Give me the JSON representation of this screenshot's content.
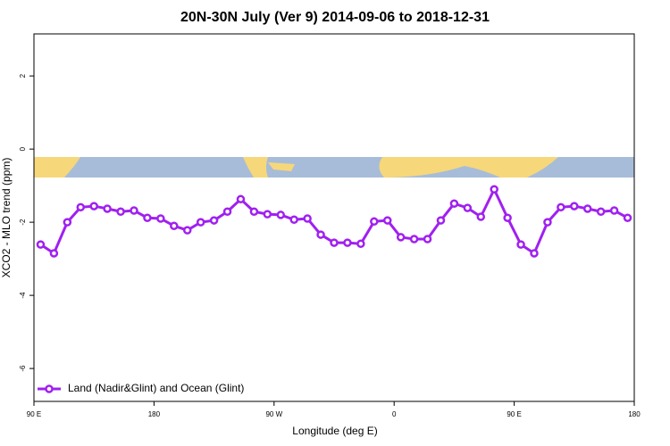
{
  "chart_data": {
    "type": "line",
    "title": "20N-30N July (Ver 9)   2014-09-06 to 2018-12-31",
    "x_label": "Longitude (deg E)",
    "y_label": "XCO2 - MLO trend (ppm)",
    "x": [
      95,
      105,
      115,
      125,
      135,
      145,
      155,
      165,
      175,
      185,
      195,
      205,
      215,
      225,
      235,
      245,
      255,
      265,
      275,
      285,
      295,
      305,
      315,
      325,
      335,
      345,
      355,
      365,
      375,
      385,
      395,
      405,
      415,
      425,
      435,
      445,
      455,
      465,
      475,
      485,
      495,
      505,
      515,
      525,
      535
    ],
    "series": [
      {
        "name": "Land (Nadir&Glint) and Ocean (Glint)",
        "color": "#a020f0",
        "values": [
          -2.61,
          -2.85,
          -2.0,
          -1.59,
          -1.56,
          -1.63,
          -1.71,
          -1.68,
          -1.88,
          -1.9,
          -2.1,
          -2.22,
          -2.0,
          -1.95,
          -1.71,
          -1.37,
          -1.71,
          -1.78,
          -1.8,
          -1.93,
          -1.9,
          -2.34,
          -2.56,
          -2.56,
          -2.59,
          -1.98,
          -1.95,
          -2.41,
          -2.46,
          -2.46,
          -1.95,
          -1.49,
          -1.61,
          -1.85,
          -1.1,
          -1.88,
          -2.61,
          -2.85,
          -2.0,
          -1.59,
          -1.56,
          -1.63,
          -1.71,
          -1.68,
          -1.88
        ]
      }
    ],
    "xlim": [
      90,
      540
    ],
    "xticks": [
      {
        "value": 90,
        "label": "90 E"
      },
      {
        "value": 180,
        "label": "180"
      },
      {
        "value": 270,
        "label": "90 W"
      },
      {
        "value": 360,
        "label": "0"
      },
      {
        "value": 450,
        "label": "90 E"
      },
      {
        "value": 540,
        "label": "180"
      }
    ],
    "ylim": [
      -6.9,
      3.15
    ],
    "yticks": [
      -6,
      -4,
      -2,
      0,
      2
    ],
    "legend": "lower left",
    "grid": false
  }
}
